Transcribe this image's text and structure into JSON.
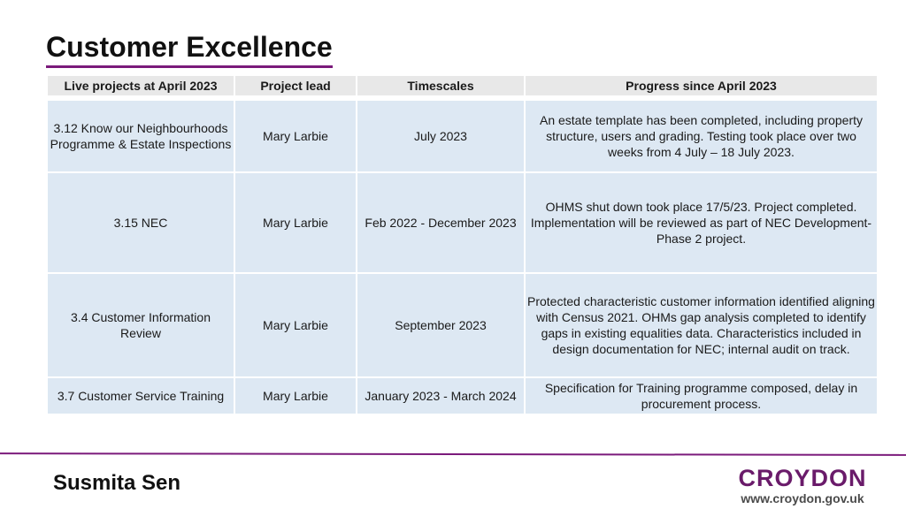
{
  "page": {
    "title": "Customer Excellence"
  },
  "table": {
    "headers": [
      "Live projects at April 2023",
      "Project lead",
      "Timescales",
      "Progress since April 2023"
    ],
    "rows": [
      {
        "project": "3.12 Know our Neighbourhoods Programme & Estate Inspections",
        "lead": "Mary Larbie",
        "timescale": "July 2023",
        "progress": "An estate template has been completed, including property structure, users and grading. Testing took place over two weeks from 4 July – 18 July 2023."
      },
      {
        "project": "3.15 NEC",
        "lead": "Mary Larbie",
        "timescale": "Feb 2022 - December 2023",
        "progress": "OHMS shut down took place 17/5/23. Project completed. Implementation will be reviewed as part of NEC Development- Phase 2 project."
      },
      {
        "project": "3.4 Customer Information Review",
        "lead": "Mary Larbie",
        "timescale": "September 2023",
        "progress": "Protected characteristic customer information identified aligning with Census 2021. OHMs gap analysis completed to identify gaps in existing equalities data. Characteristics included in design documentation for NEC; internal audit on track."
      },
      {
        "project": "3.7 Customer Service Training",
        "lead": "Mary Larbie",
        "timescale": "January 2023 - March 2024",
        "progress": "Specification for Training programme composed, delay in procurement process."
      }
    ]
  },
  "footer": {
    "author": "Susmita Sen",
    "logo_word": "CROYDON",
    "logo_url": "www.croydon.gov.uk"
  },
  "colors": {
    "accent": "#7b1a7b",
    "header_bg": "#e8e8e8",
    "cell_bg": "#dde8f3"
  }
}
